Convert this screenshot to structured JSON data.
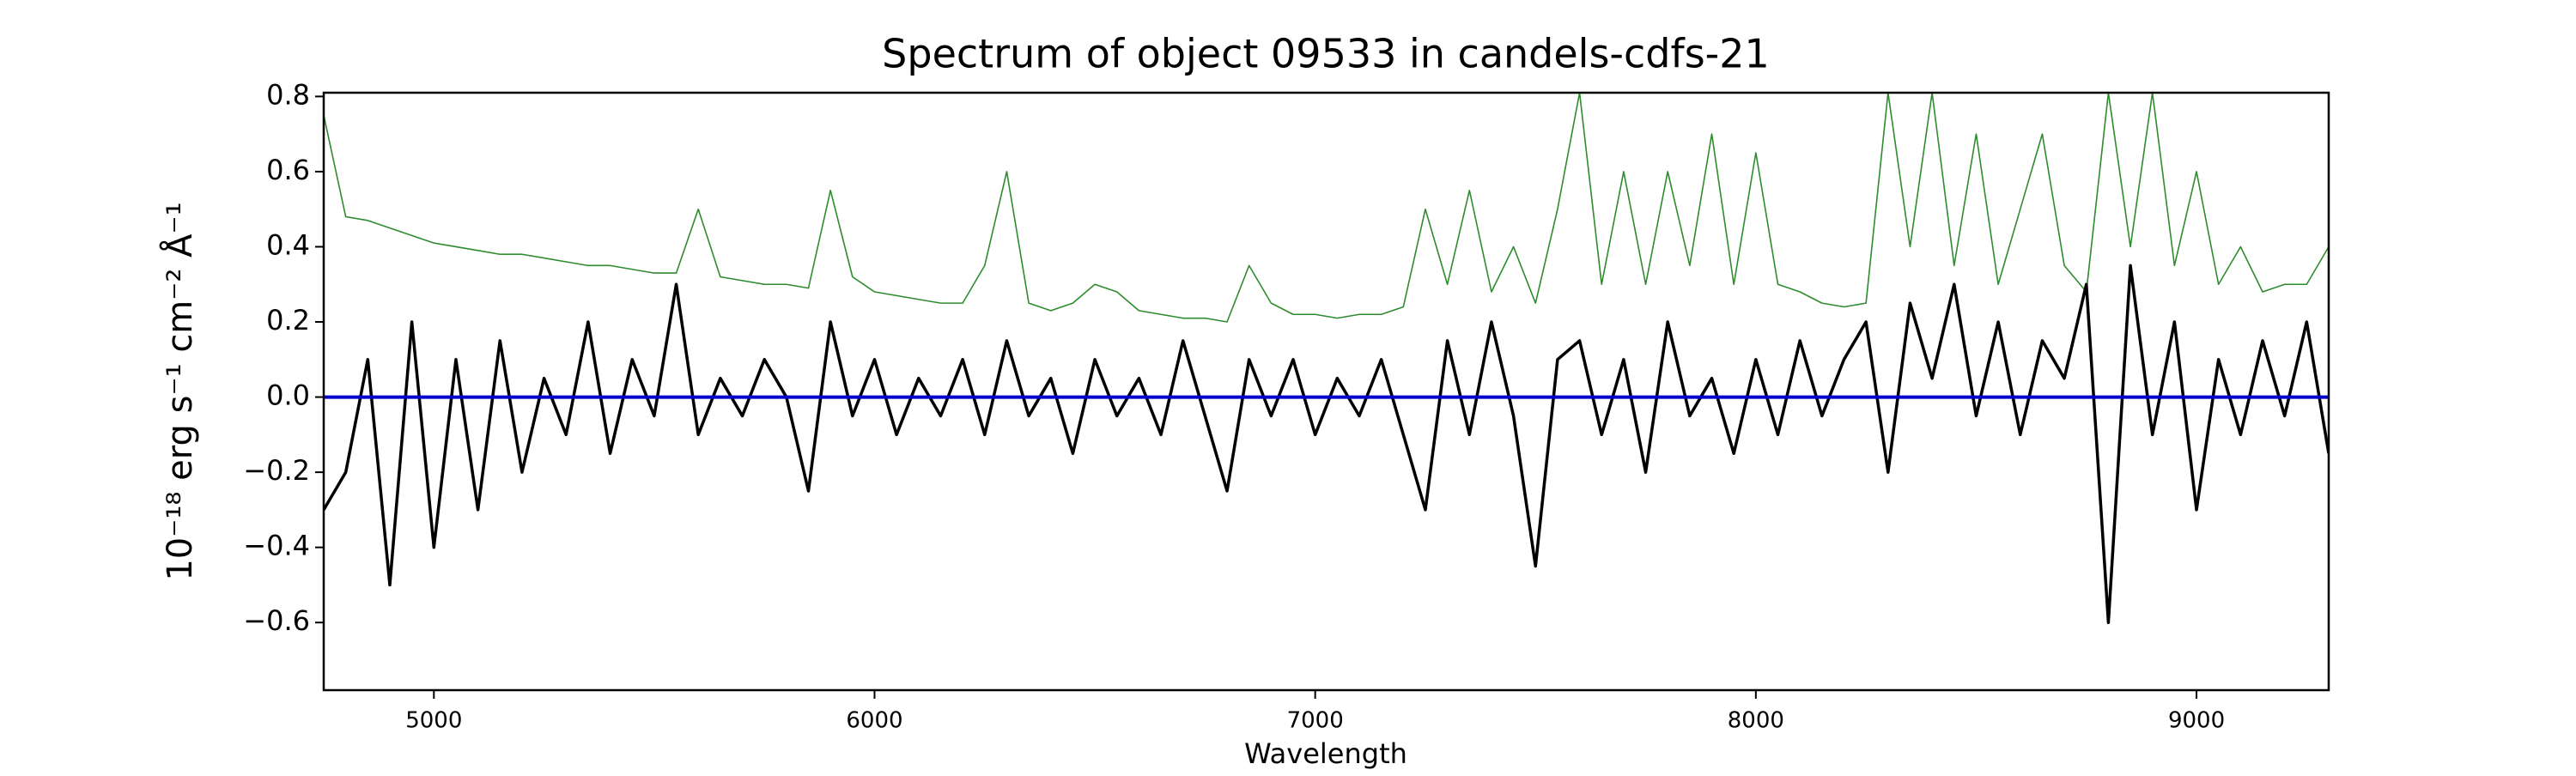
{
  "chart_data": {
    "type": "line",
    "title": "Spectrum of object 09533 in candels-cdfs-21",
    "x_label": "Wavelength",
    "y_label": "10⁻¹⁸ erg s⁻¹ cm⁻² Å⁻¹",
    "xlim": [
      4750,
      9300
    ],
    "ylim": [
      -0.78,
      0.81
    ],
    "xticks": [
      5000,
      6000,
      7000,
      8000,
      9000
    ],
    "yticks": [
      {
        "value": -0.6,
        "label": "−0.6"
      },
      {
        "value": -0.4,
        "label": "−0.4"
      },
      {
        "value": -0.2,
        "label": "−0.2"
      },
      {
        "value": 0,
        "label": "0.0"
      },
      {
        "value": 0.2,
        "label": "0.2"
      },
      {
        "value": 0.4,
        "label": "0.4"
      },
      {
        "value": 0.6,
        "label": "0.6"
      },
      {
        "value": 0.8,
        "label": "0.8"
      }
    ],
    "reference_line": {
      "value": 0,
      "color": "#0000cc"
    },
    "x": [
      4750,
      4800,
      4850,
      4900,
      4950,
      5000,
      5050,
      5100,
      5150,
      5200,
      5250,
      5300,
      5350,
      5400,
      5450,
      5500,
      5550,
      5600,
      5650,
      5700,
      5750,
      5800,
      5850,
      5900,
      5950,
      6000,
      6050,
      6100,
      6150,
      6200,
      6250,
      6300,
      6350,
      6400,
      6450,
      6500,
      6550,
      6600,
      6650,
      6700,
      6750,
      6800,
      6850,
      6900,
      6950,
      7000,
      7050,
      7100,
      7150,
      7200,
      7250,
      7300,
      7350,
      7400,
      7450,
      7500,
      7550,
      7600,
      7650,
      7700,
      7750,
      7800,
      7850,
      7900,
      7950,
      8000,
      8050,
      8100,
      8150,
      8200,
      8250,
      8300,
      8350,
      8400,
      8450,
      8500,
      8550,
      8600,
      8650,
      8700,
      8750,
      8800,
      8850,
      8900,
      8950,
      9000,
      9050,
      9100,
      9150,
      9200,
      9250,
      9300
    ],
    "series": [
      {
        "color": "#2e8b2e",
        "width": 1.6,
        "values": [
          0.75,
          0.48,
          0.47,
          0.45,
          0.43,
          0.41,
          0.4,
          0.39,
          0.38,
          0.38,
          0.37,
          0.36,
          0.35,
          0.35,
          0.34,
          0.33,
          0.33,
          0.5,
          0.32,
          0.31,
          0.3,
          0.3,
          0.29,
          0.55,
          0.32,
          0.28,
          0.27,
          0.26,
          0.25,
          0.25,
          0.35,
          0.6,
          0.25,
          0.23,
          0.25,
          0.3,
          0.28,
          0.23,
          0.22,
          0.21,
          0.21,
          0.2,
          0.35,
          0.25,
          0.22,
          0.22,
          0.21,
          0.22,
          0.22,
          0.24,
          0.5,
          0.3,
          0.55,
          0.28,
          0.4,
          0.25,
          0.5,
          0.81,
          0.3,
          0.6,
          0.3,
          0.6,
          0.35,
          0.7,
          0.3,
          0.65,
          0.3,
          0.28,
          0.25,
          0.24,
          0.25,
          0.81,
          0.4,
          0.81,
          0.35,
          0.7,
          0.3,
          0.5,
          0.7,
          0.35,
          0.28,
          0.81,
          0.4,
          0.81,
          0.35,
          0.6,
          0.3,
          0.4,
          0.28,
          0.3,
          0.3,
          0.4
        ]
      },
      {
        "color": "#000000",
        "width": 3.5,
        "values": [
          -0.3,
          -0.2,
          0.1,
          -0.5,
          0.2,
          -0.4,
          0.1,
          -0.3,
          0.15,
          -0.2,
          0.05,
          -0.1,
          0.2,
          -0.15,
          0.1,
          -0.05,
          0.3,
          -0.1,
          0.05,
          -0.05,
          0.1,
          0,
          -0.25,
          0.2,
          -0.05,
          0.1,
          -0.1,
          0.05,
          -0.05,
          0.1,
          -0.1,
          0.15,
          -0.05,
          0.05,
          -0.15,
          0.1,
          -0.05,
          0.05,
          -0.1,
          0.15,
          -0.05,
          -0.25,
          0.1,
          -0.05,
          0.1,
          -0.1,
          0.05,
          -0.05,
          0.1,
          -0.1,
          -0.3,
          0.15,
          -0.1,
          0.2,
          -0.05,
          -0.45,
          0.1,
          0.15,
          -0.1,
          0.1,
          -0.2,
          0.2,
          -0.05,
          0.05,
          -0.15,
          0.1,
          -0.1,
          0.15,
          -0.05,
          0.1,
          0.2,
          -0.2,
          0.25,
          0.05,
          0.3,
          -0.05,
          0.2,
          -0.1,
          0.15,
          0.05,
          0.3,
          -0.6,
          0.35,
          -0.1,
          0.2,
          -0.3,
          0.1,
          -0.1,
          0.15,
          -0.05,
          0.2,
          -0.15
        ]
      }
    ]
  }
}
